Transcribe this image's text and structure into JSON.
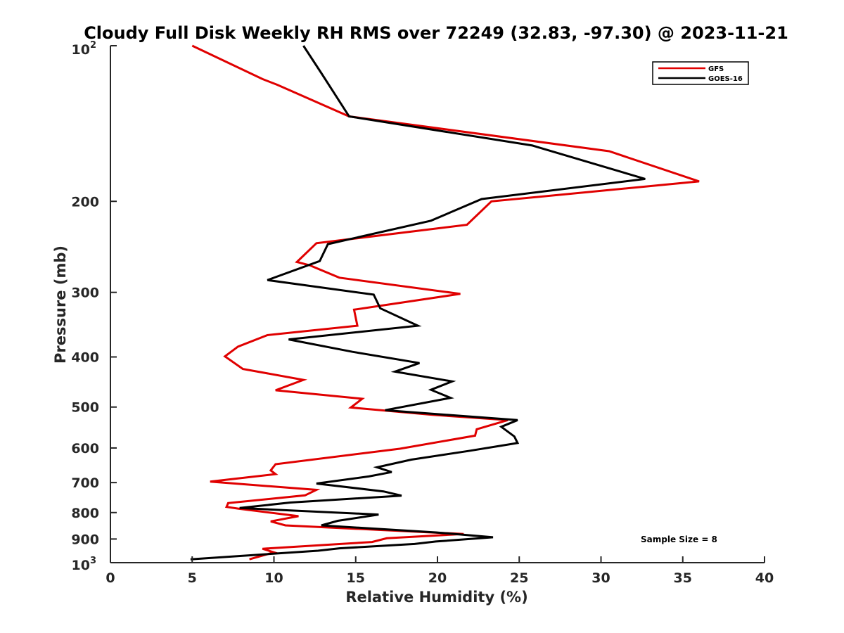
{
  "chart_data": {
    "type": "line",
    "title": "Cloudy Full Disk Weekly RH RMS over 72249 (32.83, -97.30) @ 2023-11-21",
    "xlabel": "Relative Humidity (%)",
    "ylabel": "Pressure (mb)",
    "xlim": [
      0,
      40
    ],
    "ylim": [
      100,
      1000
    ],
    "y_scale": "log",
    "y_reversed": true,
    "x_ticks": [
      0,
      5,
      10,
      15,
      20,
      25,
      30,
      35,
      40
    ],
    "x_tick_labels": [
      "0",
      "5",
      "10",
      "15",
      "20",
      "25",
      "30",
      "35",
      "40"
    ],
    "y_ticks": [
      200,
      300,
      400,
      500,
      600,
      700,
      800,
      900
    ],
    "y_tick_labels": [
      "200",
      "300",
      "400",
      "500",
      "600",
      "700",
      "800",
      "900"
    ],
    "y_end_labels": {
      "base": "10",
      "top_exp": "2",
      "bottom_exp": "3"
    },
    "legend_position": "top-right",
    "grid": false,
    "annotation": "Sample Size = 8",
    "series": [
      {
        "name": "GFS",
        "color": "#e00000",
        "points": [
          [
            5.0,
            100
          ],
          [
            9.3,
            116
          ],
          [
            10.2,
            119
          ],
          [
            14.6,
            137
          ],
          [
            30.5,
            160
          ],
          [
            36.0,
            183
          ],
          [
            23.3,
            200
          ],
          [
            21.8,
            222
          ],
          [
            12.6,
            241
          ],
          [
            11.4,
            262
          ],
          [
            12.2,
            266
          ],
          [
            14.0,
            281
          ],
          [
            21.4,
            302
          ],
          [
            14.9,
            324
          ],
          [
            15.1,
            348
          ],
          [
            9.6,
            363
          ],
          [
            7.8,
            382
          ],
          [
            7.0,
            399
          ],
          [
            8.1,
            422
          ],
          [
            11.8,
            443
          ],
          [
            10.1,
            464
          ],
          [
            15.4,
            482
          ],
          [
            14.7,
            501
          ],
          [
            19.8,
            518
          ],
          [
            24.3,
            530
          ],
          [
            22.4,
            552
          ],
          [
            22.3,
            568
          ],
          [
            17.7,
            602
          ],
          [
            10.1,
            645
          ],
          [
            9.8,
            663
          ],
          [
            10.1,
            674
          ],
          [
            6.1,
            697
          ],
          [
            12.6,
            723
          ],
          [
            11.9,
            741
          ],
          [
            7.2,
            767
          ],
          [
            7.1,
            780
          ],
          [
            7.8,
            786
          ],
          [
            11.5,
            813
          ],
          [
            9.8,
            832
          ],
          [
            10.7,
            847
          ],
          [
            21.6,
            880
          ],
          [
            16.9,
            897
          ],
          [
            16.0,
            912
          ],
          [
            9.3,
            940
          ],
          [
            10.0,
            955
          ],
          [
            8.5,
            985
          ]
        ]
      },
      {
        "name": "GOES-16",
        "color": "#000000",
        "points": [
          [
            11.8,
            100
          ],
          [
            12.9,
            113
          ],
          [
            14.6,
            137
          ],
          [
            25.8,
            156
          ],
          [
            32.7,
            181
          ],
          [
            22.7,
            198
          ],
          [
            19.6,
            218
          ],
          [
            13.3,
            242
          ],
          [
            12.8,
            261
          ],
          [
            9.6,
            284
          ],
          [
            16.1,
            303
          ],
          [
            16.5,
            322
          ],
          [
            18.8,
            348
          ],
          [
            10.9,
            370
          ],
          [
            14.8,
            391
          ],
          [
            18.9,
            411
          ],
          [
            17.4,
            427
          ],
          [
            20.9,
            446
          ],
          [
            19.6,
            463
          ],
          [
            20.8,
            480
          ],
          [
            16.8,
            507
          ],
          [
            24.9,
            530
          ],
          [
            23.9,
            546
          ],
          [
            24.7,
            570
          ],
          [
            24.9,
            587
          ],
          [
            21.9,
            608
          ],
          [
            18.4,
            632
          ],
          [
            16.3,
            654
          ],
          [
            17.2,
            668
          ],
          [
            15.8,
            681
          ],
          [
            12.6,
            703
          ],
          [
            16.7,
            728
          ],
          [
            17.8,
            742
          ],
          [
            11.0,
            765
          ],
          [
            7.9,
            784
          ],
          [
            16.4,
            807
          ],
          [
            13.9,
            830
          ],
          [
            12.9,
            847
          ],
          [
            19.9,
            874
          ],
          [
            23.4,
            893
          ],
          [
            19.9,
            910
          ],
          [
            18.6,
            920
          ],
          [
            14.0,
            938
          ],
          [
            12.7,
            948
          ],
          [
            4.9,
            985
          ]
        ]
      }
    ]
  }
}
